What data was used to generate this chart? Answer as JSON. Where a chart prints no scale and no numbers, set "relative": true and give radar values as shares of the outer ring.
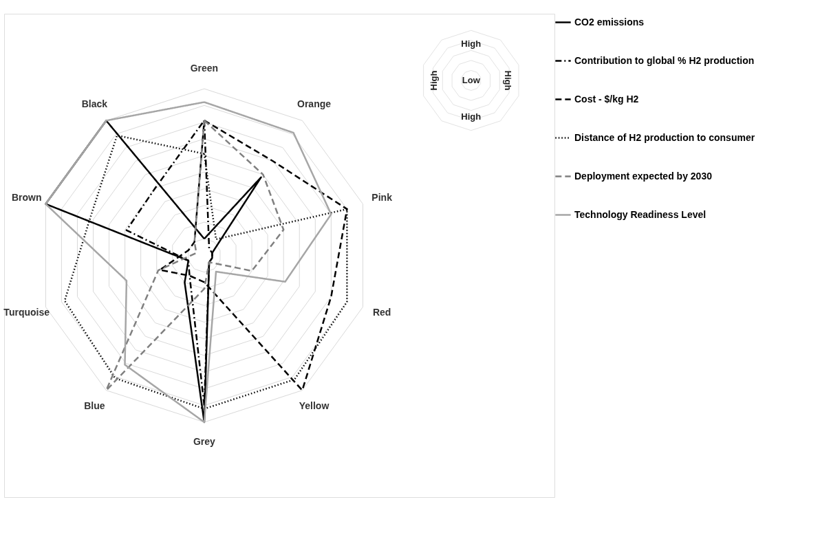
{
  "chart_data": {
    "type": "radar",
    "relative": true,
    "grid": true,
    "legend": "right",
    "marker": "none",
    "categories": [
      "Green",
      "Orange",
      "Pink",
      "Red",
      "Yellow",
      "Grey",
      "Blue",
      "Turquoise",
      "Brown",
      "Black"
    ],
    "annotations": [
      "High",
      "High",
      "High",
      "High",
      "Low"
    ],
    "series": [
      {
        "name": "CO2 emissions",
        "color": "#000000",
        "line_style": "solid",
        "values": [
          0.1,
          0.58,
          0.05,
          0.05,
          0.05,
          1.0,
          0.2,
          0.1,
          1.0,
          1.0
        ]
      },
      {
        "name": "Contribution to global % H2 production",
        "color": "#000000",
        "line_style": "dashdot",
        "values": [
          0.81,
          0.05,
          0.05,
          0.05,
          0.05,
          0.9,
          0.15,
          0.1,
          0.49,
          0.5
        ]
      },
      {
        "name": "Cost - $/kg H2",
        "color": "#000000",
        "line_style": "dashed",
        "values": [
          0.81,
          0.7,
          0.9,
          0.8,
          1.0,
          0.16,
          0.15,
          0.28,
          0.1,
          0.1
        ]
      },
      {
        "name": "Distance of H2 production to consumer",
        "color": "#000000",
        "line_style": "dotted",
        "values": [
          0.61,
          0.12,
          0.9,
          0.9,
          0.92,
          0.92,
          0.91,
          0.88,
          0.72,
          0.89
        ]
      },
      {
        "name": "Deployment expected by 2030",
        "color": "#808080",
        "line_style": "dashed",
        "values": [
          0.81,
          0.6,
          0.5,
          0.3,
          0.05,
          0.2,
          1.0,
          0.29,
          0.05,
          0.1
        ]
      },
      {
        "name": "Technology Readiness Level",
        "color": "#a6a6a6",
        "line_style": "solid",
        "values": [
          0.92,
          0.91,
          0.8,
          0.51,
          0.12,
          1.0,
          0.81,
          0.49,
          1.0,
          1.0
        ]
      }
    ]
  }
}
